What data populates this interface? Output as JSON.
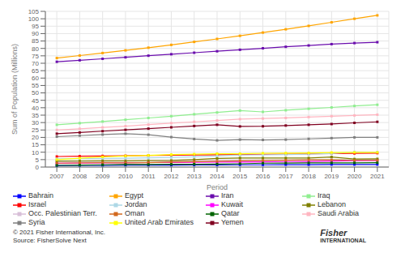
{
  "chart_data": {
    "type": "line",
    "xlabel": "Period",
    "ylabel": "Sum of Population (Millions)",
    "x": [
      2007,
      2008,
      2009,
      2010,
      2011,
      2012,
      2013,
      2014,
      2015,
      2016,
      2017,
      2018,
      2019,
      2020,
      2021
    ],
    "series": [
      {
        "name": "Egypt",
        "color": "#FFA500",
        "values": [
          73.5,
          75.2,
          76.9,
          78.7,
          80.5,
          82.4,
          84.4,
          86.4,
          88.5,
          90.7,
          92.9,
          95.2,
          97.6,
          100.0,
          102.3
        ]
      },
      {
        "name": "Iran",
        "color": "#6A0DAD",
        "values": [
          71.0,
          72.0,
          73.0,
          74.0,
          75.1,
          76.1,
          77.1,
          78.1,
          79.1,
          80.1,
          81.1,
          82.0,
          82.9,
          83.6,
          84.2
        ]
      },
      {
        "name": "Iraq",
        "color": "#90EE90",
        "values": [
          28.5,
          29.6,
          30.7,
          31.9,
          33.1,
          34.3,
          35.6,
          36.8,
          38.1,
          37.2,
          38.3,
          39.3,
          40.2,
          41.2,
          42.0
        ]
      },
      {
        "name": "Saudi Arabia",
        "color": "#FFB6C1",
        "values": [
          25.0,
          25.8,
          26.7,
          27.6,
          28.6,
          29.6,
          30.5,
          31.4,
          32.3,
          32.7,
          33.1,
          33.7,
          34.3,
          34.8,
          35.3
        ]
      },
      {
        "name": "Yemen",
        "color": "#800020",
        "values": [
          22.5,
          23.3,
          24.2,
          25.1,
          25.9,
          26.8,
          27.7,
          28.5,
          27.4,
          27.5,
          28.0,
          28.5,
          29.0,
          29.8,
          30.5
        ]
      },
      {
        "name": "Syria",
        "color": "#808080",
        "values": [
          20.5,
          21.2,
          21.9,
          22.5,
          21.8,
          20.2,
          18.9,
          18.0,
          18.5,
          18.3,
          18.5,
          19.0,
          19.5,
          20.0,
          20.0
        ]
      },
      {
        "name": "Occ. Palestinian Terr.",
        "color": "#D8BFD8",
        "values": [
          3.7,
          3.8,
          3.9,
          4.0,
          4.1,
          4.2,
          4.3,
          4.4,
          4.5,
          4.6,
          4.7,
          4.8,
          4.9,
          5.0,
          5.2
        ]
      },
      {
        "name": "Israel",
        "color": "#FF0000",
        "values": [
          7.1,
          7.3,
          7.5,
          7.6,
          7.8,
          8.0,
          8.1,
          8.3,
          8.4,
          8.6,
          8.7,
          8.9,
          9.1,
          9.2,
          9.4
        ]
      },
      {
        "name": "Jordan",
        "color": "#ADD8E6",
        "values": [
          5.5,
          5.7,
          5.8,
          6.0,
          6.2,
          6.5,
          6.9,
          7.5,
          8.1,
          8.2,
          8.4,
          8.7,
          9.1,
          10.2,
          10.1
        ]
      },
      {
        "name": "Kuwait",
        "color": "#FF00FF",
        "values": [
          2.5,
          2.7,
          2.8,
          2.9,
          3.0,
          3.1,
          3.2,
          3.3,
          3.4,
          3.5,
          3.7,
          3.8,
          4.0,
          4.3,
          4.4
        ]
      },
      {
        "name": "Bahrain",
        "color": "#0000FF",
        "values": [
          1.0,
          1.1,
          1.2,
          1.3,
          1.3,
          1.3,
          1.4,
          1.4,
          1.5,
          1.5,
          1.6,
          1.6,
          1.7,
          1.7,
          1.7
        ]
      },
      {
        "name": "Lebanon",
        "color": "#808000",
        "values": [
          4.0,
          4.1,
          4.2,
          4.2,
          4.3,
          4.4,
          5.0,
          5.8,
          6.1,
          6.1,
          6.1,
          6.1,
          6.8,
          5.4,
          5.5
        ]
      },
      {
        "name": "Oman",
        "color": "#D2691E",
        "values": [
          2.6,
          2.8,
          2.9,
          2.8,
          2.9,
          3.3,
          3.6,
          3.9,
          4.2,
          4.4,
          4.6,
          4.8,
          4.8,
          4.5,
          4.5
        ]
      },
      {
        "name": "Qatar",
        "color": "#006400",
        "values": [
          1.1,
          1.3,
          1.5,
          1.7,
          1.7,
          1.8,
          1.9,
          2.0,
          2.2,
          2.6,
          2.7,
          2.8,
          2.8,
          2.8,
          2.9
        ]
      },
      {
        "name": "United Arab Emirates",
        "color": "#FFFF00",
        "values": [
          5.0,
          6.0,
          6.9,
          7.5,
          7.9,
          8.4,
          8.7,
          9.0,
          9.0,
          9.3,
          9.4,
          9.5,
          9.8,
          9.9,
          9.9
        ]
      }
    ],
    "xlim": [
      2006.5,
      2021.5
    ],
    "xticks": [
      2007,
      2008,
      2009,
      2010,
      2011,
      2012,
      2013,
      2014,
      2015,
      2016,
      2017,
      2018,
      2019,
      2020,
      2021
    ],
    "ylim": [
      0,
      105
    ],
    "yticks": [
      0,
      5,
      10,
      15,
      20,
      25,
      30,
      35,
      40,
      45,
      50,
      55,
      60,
      65,
      70,
      75,
      80,
      85,
      90,
      95,
      100,
      105
    ],
    "grid": true,
    "legend": "bottom",
    "marker": "square",
    "annotations": [
      "© 2021 Fisher International, Inc.",
      "Source: FisherSolve Next",
      "Fisher",
      "INTERNATIONAL"
    ]
  }
}
